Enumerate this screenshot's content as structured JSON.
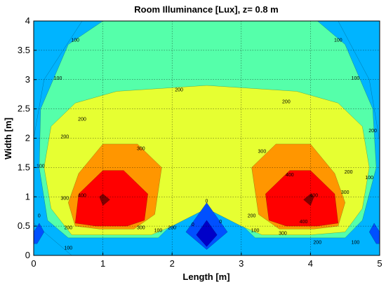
{
  "chart_data": {
    "type": "heatmap",
    "title": "Room Illuminance [Lux], z= 0.8 m",
    "xlabel": "Length [m]",
    "ylabel": "Width [m]",
    "xlim": [
      0,
      5
    ],
    "ylim": [
      0,
      4
    ],
    "xticks": [
      "0",
      "1",
      "2",
      "3",
      "4",
      "5"
    ],
    "yticks": [
      "0",
      "0.5",
      "1",
      "1.5",
      "2",
      "2.5",
      "3",
      "3.5",
      "4"
    ],
    "grid": true,
    "contour_levels": [
      0,
      100,
      200,
      300,
      400
    ],
    "level_colors": {
      "below_0": "#0000c8",
      "0_to_100": "#00b4ff",
      "100_to_200": "#55ffaa",
      "200_to_300": "#e6ff32",
      "300_to_400": "#ff9600",
      "above_400": "#ff0000",
      "peak": "#800000"
    },
    "regions": [
      {
        "name": "level-0",
        "points": [
          [
            0.55,
            0
          ],
          [
            1.25,
            0
          ],
          [
            2.3,
            0
          ],
          [
            2.5,
            -0.4
          ],
          [
            2.7,
            0
          ],
          [
            3.75,
            0
          ],
          [
            4.5,
            0
          ],
          [
            5,
            0
          ],
          [
            5,
            0.55
          ],
          [
            5,
            1.95
          ],
          [
            4.85,
            3.0
          ],
          [
            4.4,
            4.0
          ],
          [
            3.6,
            4.0
          ],
          [
            1.4,
            4.0
          ],
          [
            0.7,
            4.0
          ],
          [
            0.15,
            3.0
          ],
          [
            0,
            2.0
          ],
          [
            0,
            0.55
          ]
        ]
      },
      {
        "name": "level-100",
        "points": [
          [
            1.0,
            0.3
          ],
          [
            1.8,
            0.3
          ],
          [
            2.15,
            0.7
          ],
          [
            2.5,
            1.4
          ],
          [
            2.85,
            0.7
          ],
          [
            3.2,
            0.3
          ],
          [
            4.0,
            0.3
          ],
          [
            4.5,
            0.3
          ],
          [
            4.75,
            0.6
          ],
          [
            4.95,
            1.5
          ],
          [
            4.9,
            2.5
          ],
          [
            4.5,
            3.6
          ],
          [
            4.1,
            4.0
          ],
          [
            1.0,
            4.0
          ],
          [
            0.5,
            3.6
          ],
          [
            0.1,
            2.5
          ],
          [
            0.08,
            1.5
          ],
          [
            0.2,
            0.6
          ],
          [
            0.5,
            0.3
          ]
        ]
      },
      {
        "name": "level-200",
        "points": [
          [
            0.55,
            0.35
          ],
          [
            1.0,
            0.35
          ],
          [
            1.7,
            0.35
          ],
          [
            2.0,
            0.5
          ],
          [
            2.5,
            0.8
          ],
          [
            3.0,
            0.5
          ],
          [
            3.3,
            0.35
          ],
          [
            4.0,
            0.35
          ],
          [
            4.5,
            0.4
          ],
          [
            4.75,
            0.8
          ],
          [
            4.85,
            1.5
          ],
          [
            4.75,
            2.2
          ],
          [
            4.4,
            2.6
          ],
          [
            3.8,
            2.8
          ],
          [
            2.5,
            2.9
          ],
          [
            1.2,
            2.8
          ],
          [
            0.6,
            2.6
          ],
          [
            0.25,
            2.2
          ],
          [
            0.15,
            1.5
          ],
          [
            0.25,
            0.8
          ]
        ]
      },
      {
        "name": "level-300",
        "points": [
          [
            0.5,
            0.9
          ],
          [
            0.65,
            1.4
          ],
          [
            1.0,
            1.9
          ],
          [
            1.5,
            1.9
          ],
          [
            1.85,
            1.5
          ],
          [
            1.75,
            0.7
          ],
          [
            1.45,
            0.45
          ],
          [
            0.95,
            0.45
          ],
          [
            0.6,
            0.5
          ]
        ]
      },
      {
        "name": "level-300",
        "points": [
          [
            4.5,
            0.9
          ],
          [
            4.35,
            1.4
          ],
          [
            4.0,
            1.9
          ],
          [
            3.5,
            1.9
          ],
          [
            3.15,
            1.5
          ],
          [
            3.25,
            0.7
          ],
          [
            3.55,
            0.45
          ],
          [
            4.05,
            0.45
          ],
          [
            4.4,
            0.5
          ]
        ]
      },
      {
        "name": "level-400",
        "points": [
          [
            0.6,
            0.55
          ],
          [
            0.65,
            1.05
          ],
          [
            1.0,
            1.45
          ],
          [
            1.3,
            1.45
          ],
          [
            1.65,
            1.05
          ],
          [
            1.6,
            0.6
          ],
          [
            1.35,
            0.5
          ],
          [
            0.9,
            0.5
          ]
        ]
      },
      {
        "name": "level-400",
        "points": [
          [
            4.4,
            0.55
          ],
          [
            4.35,
            1.05
          ],
          [
            4.0,
            1.45
          ],
          [
            3.7,
            1.45
          ],
          [
            3.35,
            1.05
          ],
          [
            3.4,
            0.6
          ],
          [
            3.65,
            0.5
          ],
          [
            4.1,
            0.5
          ]
        ]
      },
      {
        "name": "level-peak",
        "points": [
          [
            0.95,
            1.0
          ],
          [
            1.0,
            0.85
          ],
          [
            1.1,
            0.95
          ],
          [
            1.0,
            1.05
          ]
        ]
      },
      {
        "name": "level-peak",
        "points": [
          [
            4.05,
            1.0
          ],
          [
            4.0,
            0.85
          ],
          [
            3.9,
            0.95
          ],
          [
            4.0,
            1.05
          ]
        ]
      },
      {
        "name": "level-low",
        "points": [
          [
            2.2,
            0.4
          ],
          [
            2.5,
            0.9
          ],
          [
            2.8,
            0.4
          ],
          [
            2.5,
            0.1
          ]
        ]
      },
      {
        "name": "level-low",
        "points": [
          [
            0,
            0.4
          ],
          [
            0.08,
            0.55
          ],
          [
            0.15,
            0.4
          ],
          [
            0.05,
            0.2
          ],
          [
            0,
            0.2
          ]
        ]
      },
      {
        "name": "level-low",
        "points": [
          [
            5,
            0.4
          ],
          [
            4.92,
            0.55
          ],
          [
            4.85,
            0.4
          ],
          [
            4.95,
            0.2
          ],
          [
            5,
            0.2
          ]
        ]
      },
      {
        "name": "level-darkest",
        "points": [
          [
            2.35,
            0.35
          ],
          [
            2.5,
            0.6
          ],
          [
            2.65,
            0.35
          ],
          [
            2.5,
            0.15
          ]
        ]
      }
    ],
    "contour_labels": [
      {
        "text": "100",
        "x": 0.6,
        "y": 3.65
      },
      {
        "text": "100",
        "x": 0.35,
        "y": 3.0
      },
      {
        "text": "100",
        "x": 4.4,
        "y": 3.65
      },
      {
        "text": "100",
        "x": 4.65,
        "y": 3.0
      },
      {
        "text": "100",
        "x": 0.1,
        "y": 1.5
      },
      {
        "text": "100",
        "x": 4.85,
        "y": 1.3
      },
      {
        "text": "100",
        "x": 0.5,
        "y": 0.1
      },
      {
        "text": "100",
        "x": 1.8,
        "y": 0.4
      },
      {
        "text": "100",
        "x": 3.2,
        "y": 0.4
      },
      {
        "text": "100",
        "x": 4.65,
        "y": 0.2
      },
      {
        "text": "200",
        "x": 2.1,
        "y": 2.8
      },
      {
        "text": "200",
        "x": 0.7,
        "y": 2.3
      },
      {
        "text": "200",
        "x": 3.65,
        "y": 2.6
      },
      {
        "text": "200",
        "x": 4.9,
        "y": 2.1
      },
      {
        "text": "200",
        "x": 0.45,
        "y": 2.0
      },
      {
        "text": "200",
        "x": 4.55,
        "y": 1.4
      },
      {
        "text": "200",
        "x": 0.5,
        "y": 0.45
      },
      {
        "text": "200",
        "x": 2.0,
        "y": 0.45
      },
      {
        "text": "200",
        "x": 3.15,
        "y": 0.65
      },
      {
        "text": "200",
        "x": 4.1,
        "y": 0.2
      },
      {
        "text": "300",
        "x": 1.55,
        "y": 1.8
      },
      {
        "text": "300",
        "x": 3.3,
        "y": 1.75
      },
      {
        "text": "300",
        "x": 0.45,
        "y": 0.95
      },
      {
        "text": "300",
        "x": 4.5,
        "y": 1.05
      },
      {
        "text": "300",
        "x": 1.55,
        "y": 0.45
      },
      {
        "text": "300",
        "x": 3.6,
        "y": 0.35
      },
      {
        "text": "400",
        "x": 0.7,
        "y": 1.0
      },
      {
        "text": "400",
        "x": 3.7,
        "y": 1.35
      },
      {
        "text": "400",
        "x": 3.9,
        "y": 0.55
      },
      {
        "text": "400",
        "x": 4.05,
        "y": 1.0
      },
      {
        "text": "0",
        "x": 2.5,
        "y": 0.9
      },
      {
        "text": "0",
        "x": 2.7,
        "y": 0.55
      },
      {
        "text": "0",
        "x": 2.3,
        "y": 0.5
      },
      {
        "text": "0",
        "x": 0.08,
        "y": 0.65
      }
    ]
  }
}
